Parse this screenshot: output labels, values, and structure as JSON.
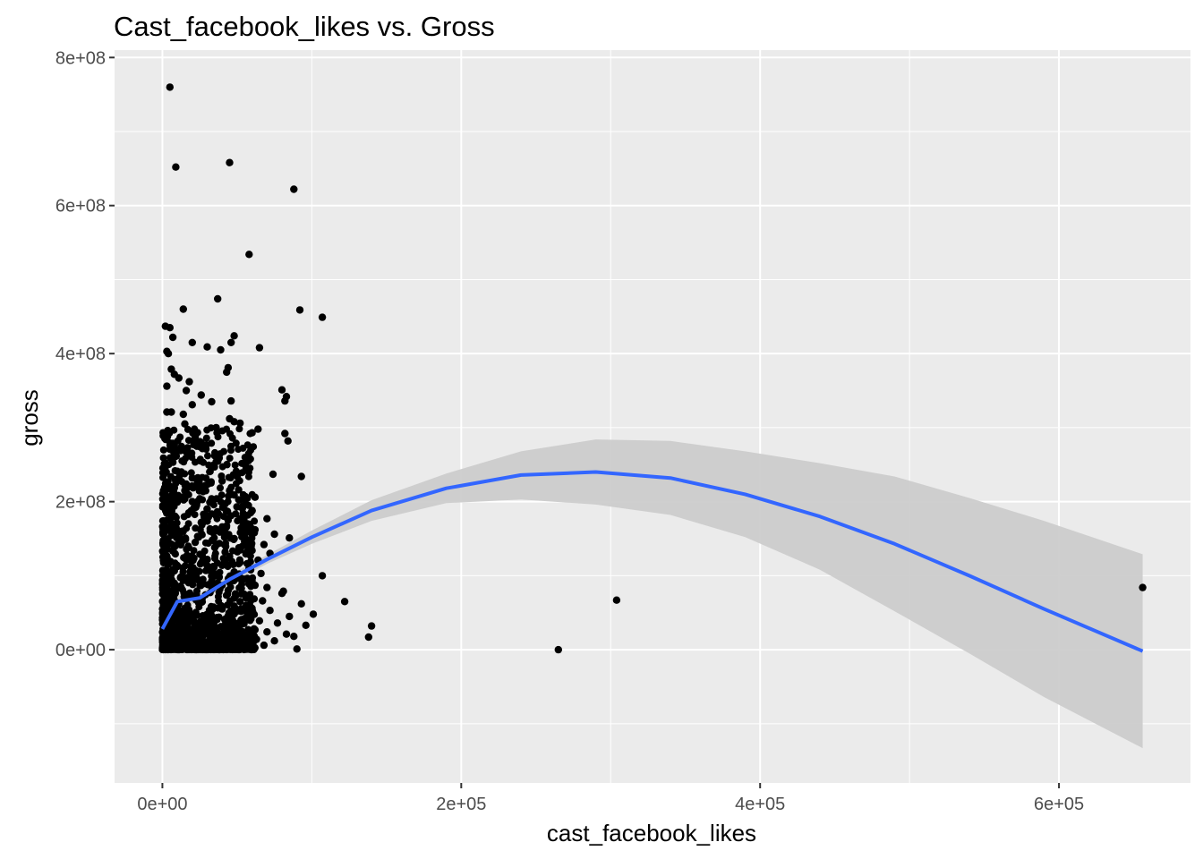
{
  "chart_data": {
    "type": "scatter",
    "title": "Cast_facebook_likes vs. Gross",
    "xlabel": "cast_facebook_likes",
    "ylabel": "gross",
    "xlim": [
      -32000,
      688000
    ],
    "ylim": [
      -180000000,
      810000000
    ],
    "x_ticks": [
      0,
      200000,
      400000,
      600000
    ],
    "x_tick_labels": [
      "0e+00",
      "2e+05",
      "4e+05",
      "6e+05"
    ],
    "y_ticks": [
      0,
      200000000,
      400000000,
      600000000,
      800000000
    ],
    "y_tick_labels": [
      "0e+00",
      "2e+08",
      "4e+08",
      "6e+08",
      "8e+08"
    ],
    "grid": true,
    "colors": {
      "panel_background": "#ebebeb",
      "grid": "#ffffff",
      "points": "#000000",
      "smooth_line": "#3366ff",
      "ribbon": "#cccccc"
    },
    "points": [
      [
        5000,
        760000000
      ],
      [
        9000,
        652000000
      ],
      [
        45000,
        658000000
      ],
      [
        88000,
        622000000
      ],
      [
        58000,
        534000000
      ],
      [
        37000,
        474000000
      ],
      [
        14000,
        460000000
      ],
      [
        92000,
        459000000
      ],
      [
        107000,
        449000000
      ],
      [
        2000,
        437000000
      ],
      [
        5000,
        435000000
      ],
      [
        48000,
        424000000
      ],
      [
        46000,
        415000000
      ],
      [
        20000,
        415000000
      ],
      [
        7000,
        422000000
      ],
      [
        30000,
        409000000
      ],
      [
        65000,
        408000000
      ],
      [
        3000,
        403000000
      ],
      [
        4000,
        400000000
      ],
      [
        39000,
        405000000
      ],
      [
        44000,
        381000000
      ],
      [
        43000,
        375000000
      ],
      [
        6000,
        379000000
      ],
      [
        8000,
        372000000
      ],
      [
        11000,
        367000000
      ],
      [
        18000,
        362000000
      ],
      [
        3000,
        356000000
      ],
      [
        16000,
        350000000
      ],
      [
        26000,
        344000000
      ],
      [
        46000,
        336000000
      ],
      [
        80000,
        351000000
      ],
      [
        83000,
        342000000
      ],
      [
        82000,
        336000000
      ],
      [
        33000,
        335000000
      ],
      [
        20000,
        331000000
      ],
      [
        6000,
        321000000
      ],
      [
        3000,
        321000000
      ],
      [
        14000,
        318000000
      ],
      [
        45000,
        312000000
      ],
      [
        48000,
        308000000
      ],
      [
        52000,
        306000000
      ],
      [
        15000,
        305000000
      ],
      [
        36000,
        300000000
      ],
      [
        64000,
        298000000
      ],
      [
        60000,
        293000000
      ],
      [
        82000,
        292000000
      ],
      [
        22000,
        288000000
      ],
      [
        3000,
        292000000
      ],
      [
        84000,
        282000000
      ],
      [
        25000,
        281000000
      ],
      [
        8000,
        276000000
      ],
      [
        12000,
        269000000
      ],
      [
        35000,
        262000000
      ],
      [
        38000,
        259000000
      ],
      [
        55000,
        252000000
      ],
      [
        2000,
        252000000
      ],
      [
        56000,
        245000000
      ],
      [
        10000,
        241000000
      ],
      [
        74000,
        237000000
      ],
      [
        93000,
        234000000
      ],
      [
        20000,
        232000000
      ],
      [
        40000,
        228000000
      ],
      [
        29000,
        222000000
      ],
      [
        45000,
        215000000
      ],
      [
        51000,
        216000000
      ],
      [
        48000,
        209000000
      ],
      [
        62000,
        206000000
      ],
      [
        33000,
        203000000
      ],
      [
        25000,
        204000000
      ],
      [
        42000,
        197000000
      ],
      [
        50000,
        193000000
      ],
      [
        60000,
        188000000
      ],
      [
        54000,
        184000000
      ],
      [
        36000,
        181000000
      ],
      [
        28000,
        179000000
      ],
      [
        44000,
        175000000
      ],
      [
        70000,
        177000000
      ],
      [
        57000,
        170000000
      ],
      [
        40000,
        166000000
      ],
      [
        62000,
        162000000
      ],
      [
        75000,
        156000000
      ],
      [
        85000,
        151000000
      ],
      [
        48000,
        150000000
      ],
      [
        55000,
        146000000
      ],
      [
        68000,
        142000000
      ],
      [
        35000,
        138000000
      ],
      [
        60000,
        134000000
      ],
      [
        72000,
        130000000
      ],
      [
        45000,
        126000000
      ],
      [
        64000,
        121000000
      ],
      [
        52000,
        118000000
      ],
      [
        40000,
        114000000
      ],
      [
        58000,
        110000000
      ],
      [
        48000,
        105000000
      ],
      [
        66000,
        103000000
      ],
      [
        107000,
        100000000
      ],
      [
        38000,
        98000000
      ],
      [
        54000,
        95000000
      ],
      [
        45000,
        91000000
      ],
      [
        62000,
        87000000
      ],
      [
        70000,
        84000000
      ],
      [
        81000,
        79000000
      ],
      [
        80000,
        76000000
      ],
      [
        49000,
        73000000
      ],
      [
        56000,
        70000000
      ],
      [
        67000,
        66000000
      ],
      [
        122000,
        65000000
      ],
      [
        93000,
        62000000
      ],
      [
        48000,
        59000000
      ],
      [
        60000,
        56000000
      ],
      [
        72000,
        53000000
      ],
      [
        101000,
        48000000
      ],
      [
        85000,
        45000000
      ],
      [
        55000,
        42000000
      ],
      [
        65000,
        39000000
      ],
      [
        77000,
        36000000
      ],
      [
        96000,
        33000000
      ],
      [
        140000,
        32000000
      ],
      [
        50000,
        30000000
      ],
      [
        62000,
        27000000
      ],
      [
        70000,
        24000000
      ],
      [
        83000,
        21000000
      ],
      [
        88000,
        18000000
      ],
      [
        138000,
        17000000
      ],
      [
        63000,
        14000000
      ],
      [
        75000,
        12000000
      ],
      [
        58000,
        9000000
      ],
      [
        68000,
        6000000
      ],
      [
        90000,
        1000000
      ],
      [
        265000,
        0
      ],
      [
        304000,
        67000000
      ],
      [
        656000,
        84000000
      ],
      [
        20000,
        200000000
      ],
      [
        30000,
        190000000
      ],
      [
        10000,
        230000000
      ],
      [
        15000,
        215000000
      ],
      [
        26000,
        172000000
      ],
      [
        34000,
        158000000
      ],
      [
        22000,
        145000000
      ],
      [
        42000,
        132000000
      ],
      [
        30000,
        122000000
      ],
      [
        50000,
        101000000
      ],
      [
        36000,
        88000000
      ],
      [
        44000,
        80000000
      ],
      [
        52000,
        65000000
      ],
      [
        40000,
        55000000
      ],
      [
        57000,
        48000000
      ],
      [
        46000,
        38000000
      ],
      [
        53000,
        25000000
      ],
      [
        41000,
        18000000
      ],
      [
        61000,
        11000000
      ],
      [
        34000,
        8000000
      ]
    ],
    "dense_cluster": {
      "count": 1400,
      "x_range": [
        0,
        62000
      ],
      "y_range": [
        0,
        300000000
      ]
    },
    "smooth": {
      "x": [
        0,
        10000,
        25000,
        45000,
        70000,
        100000,
        140000,
        190000,
        240000,
        290000,
        340000,
        390000,
        440000,
        490000,
        540000,
        590000,
        656000
      ],
      "y": [
        28000000,
        65000000,
        70000000,
        95000000,
        122000000,
        152000000,
        188000000,
        218000000,
        236000000,
        240000000,
        232000000,
        210000000,
        180000000,
        143000000,
        100000000,
        55000000,
        -2000000
      ],
      "ymin": [
        18000000,
        57000000,
        64000000,
        89000000,
        116000000,
        143000000,
        174000000,
        198000000,
        203000000,
        196000000,
        182000000,
        152000000,
        108000000,
        52000000,
        -5000000,
        -64000000,
        -133000000
      ],
      "ymax": [
        38000000,
        73000000,
        76000000,
        101000000,
        128000000,
        161000000,
        202000000,
        238000000,
        268000000,
        284000000,
        282000000,
        268000000,
        252000000,
        234000000,
        205000000,
        174000000,
        129000000
      ]
    }
  }
}
